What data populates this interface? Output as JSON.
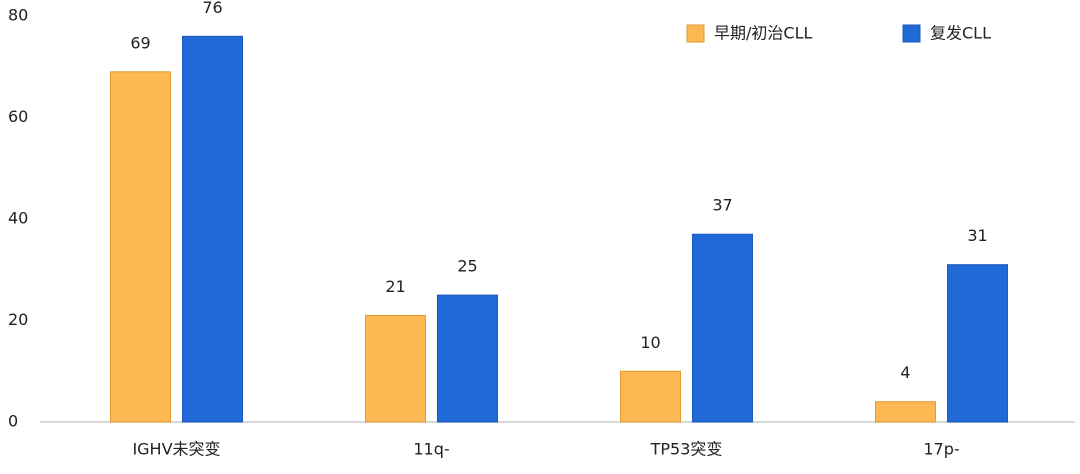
{
  "chart_data": {
    "type": "bar",
    "categories": [
      "IGHV未突变",
      "11q-",
      "TP53突变",
      "17p-"
    ],
    "series": [
      {
        "name": "早期/初治CLL",
        "color": "#fdb853",
        "values": [
          69,
          21,
          10,
          4
        ]
      },
      {
        "name": "复发CLL",
        "color": "#2069d6",
        "values": [
          76,
          25,
          37,
          31
        ]
      }
    ],
    "ylim": [
      0,
      80
    ],
    "yticks": [
      0,
      20,
      40,
      60,
      80
    ],
    "grid": false,
    "legend": "top-right"
  }
}
